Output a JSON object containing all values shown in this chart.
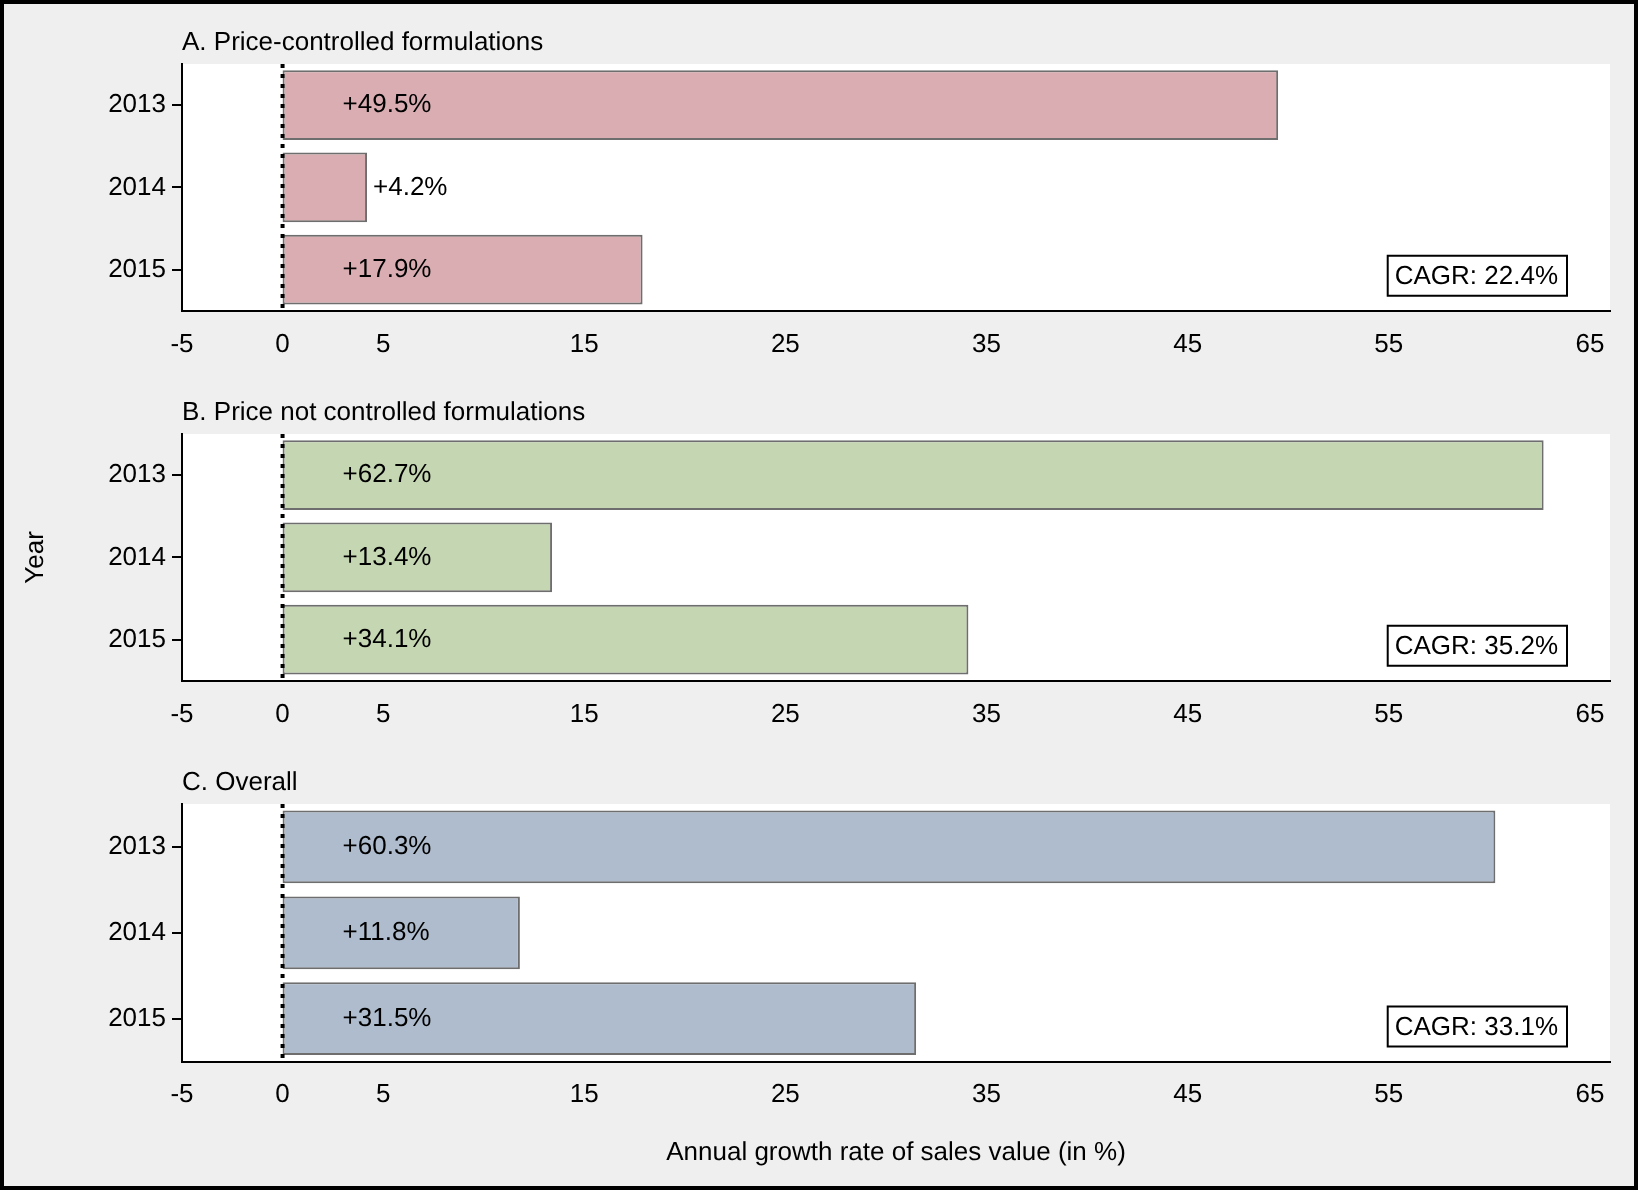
{
  "chart_data": [
    {
      "type": "bar",
      "orientation": "horizontal",
      "title": "A. Price-controlled formulations",
      "categories": [
        "2013",
        "2014",
        "2015"
      ],
      "values": [
        49.5,
        4.2,
        17.9
      ],
      "value_labels": [
        "+49.5%",
        "+4.2%",
        "+17.9%"
      ],
      "color": "#d9adb1",
      "xlim": [
        -5,
        66
      ],
      "xticks": [
        -5,
        0,
        5,
        15,
        25,
        35,
        45,
        55,
        65
      ],
      "ref_lines": [
        {
          "axis": "x",
          "value": 0,
          "line_style": "dotted",
          "color": "#000000"
        }
      ],
      "annotations": [
        "CAGR: 22.4%"
      ],
      "tick_labels": "xy"
    },
    {
      "type": "bar",
      "orientation": "horizontal",
      "title": "B. Price not controlled formulations",
      "ylabel": "Year",
      "categories": [
        "2013",
        "2014",
        "2015"
      ],
      "values": [
        62.7,
        13.4,
        34.1
      ],
      "value_labels": [
        "+62.7%",
        "+13.4%",
        "+34.1%"
      ],
      "color": "#c5d6b2",
      "xlim": [
        -5,
        66
      ],
      "xticks": [
        -5,
        0,
        5,
        15,
        25,
        35,
        45,
        55,
        65
      ],
      "ref_lines": [
        {
          "axis": "x",
          "value": 0,
          "line_style": "dotted",
          "color": "#000000"
        }
      ],
      "annotations": [
        "CAGR: 35.2%"
      ]
    },
    {
      "type": "bar",
      "orientation": "horizontal",
      "title": "C. Overall",
      "xlabel": "Annual growth rate of sales value (in %)",
      "categories": [
        "2013",
        "2014",
        "2015"
      ],
      "values": [
        60.3,
        11.8,
        31.5
      ],
      "value_labels": [
        "+60.3%",
        "+11.8%",
        "+31.5%"
      ],
      "color": "#aebccd",
      "xlim": [
        -5,
        66
      ],
      "xticks": [
        -5,
        0,
        5,
        15,
        25,
        35,
        45,
        55,
        65
      ],
      "ref_lines": [
        {
          "axis": "x",
          "value": 0,
          "line_style": "dotted",
          "color": "#000000"
        }
      ],
      "annotations": [
        "CAGR: 33.1%"
      ]
    }
  ]
}
